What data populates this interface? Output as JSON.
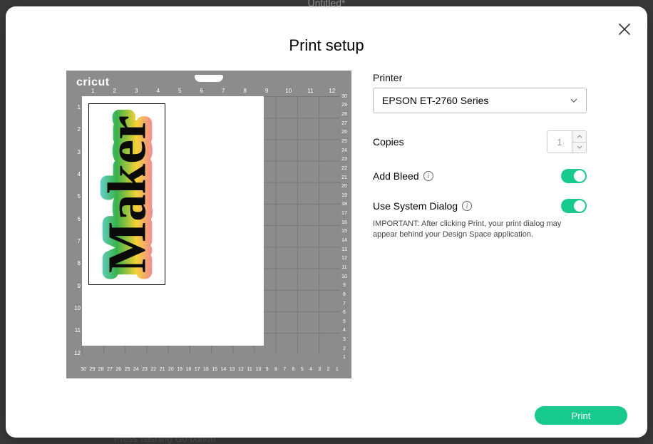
{
  "background": {
    "doc_title": "Untitled*",
    "footer_hint": "Press flashing Go button"
  },
  "modal": {
    "title": "Print setup",
    "printer_label": "Printer",
    "printer_value": "EPSON ET-2760 Series",
    "copies_label": "Copies",
    "copies_value": "1",
    "bleed_label": "Add Bleed",
    "bleed_on": true,
    "sysdialog_label": "Use System Dialog",
    "sysdialog_on": true,
    "warning": "IMPORTANT: After clicking Print, your print dialog may appear behind your Design Space application.",
    "print_button": "Print"
  },
  "preview": {
    "brand": "cricut",
    "ruler_top": [
      "1",
      "2",
      "3",
      "4",
      "5",
      "6",
      "7",
      "8",
      "9",
      "10",
      "11",
      "12"
    ],
    "ruler_left": [
      "1",
      "2",
      "3",
      "4",
      "5",
      "6",
      "7",
      "8",
      "9",
      "10",
      "11",
      "12"
    ],
    "ruler_right": [
      "1",
      "2",
      "3",
      "4",
      "5",
      "6",
      "7",
      "8",
      "9",
      "10",
      "11",
      "12",
      "13",
      "14",
      "15",
      "16",
      "17",
      "18",
      "19",
      "20",
      "21",
      "22",
      "23",
      "24",
      "25",
      "26",
      "27",
      "28",
      "29",
      "30"
    ],
    "ruler_bottom": [
      "1",
      "2",
      "3",
      "4",
      "5",
      "6",
      "7",
      "8",
      "9",
      "10",
      "11",
      "12",
      "13",
      "14",
      "15",
      "16",
      "17",
      "18",
      "19",
      "20",
      "21",
      "22",
      "23",
      "24",
      "25",
      "26",
      "27",
      "28",
      "29",
      "30"
    ],
    "design_word": "Maker",
    "design_colors": {
      "outline_top": "#6fd6e8",
      "outline_mid1": "#38b24a",
      "outline_mid2": "#f6d235",
      "outline_bot": "#f073b5",
      "letter": "#0a0a0a"
    }
  },
  "colors": {
    "accent": "#18c98d",
    "modal_bg": "#ffffff",
    "mat_bg": "#8c8c8c"
  }
}
